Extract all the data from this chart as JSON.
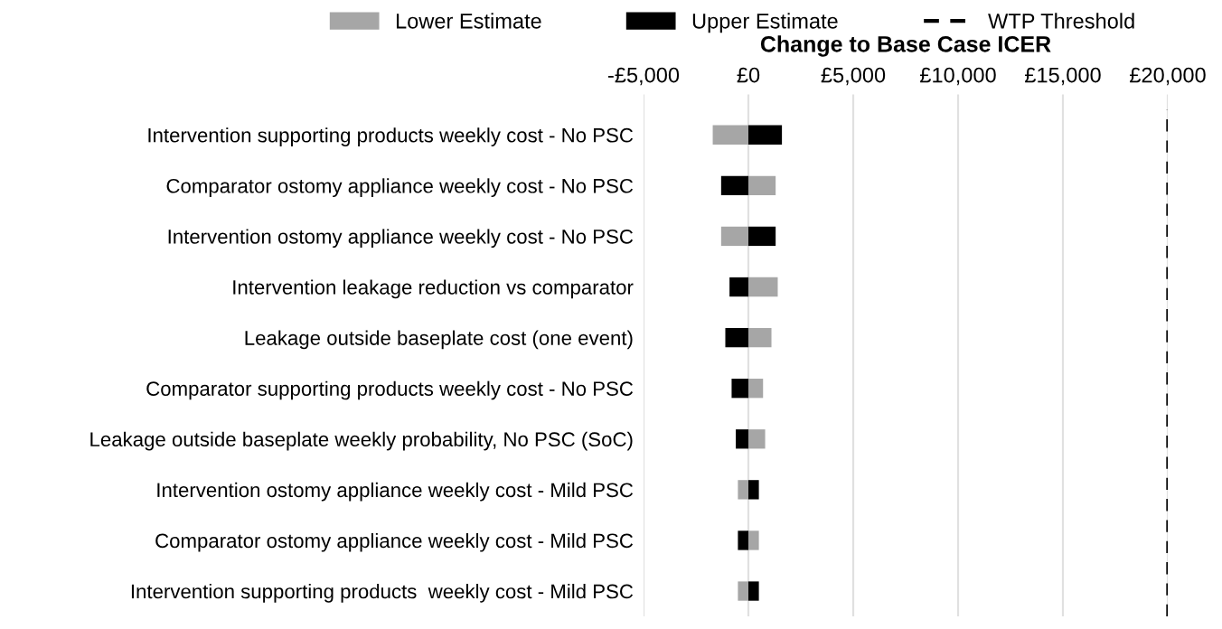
{
  "chart_data": {
    "type": "bar",
    "orientation": "horizontal",
    "xlabel": "Change to Base Case ICER",
    "categories": [
      "Intervention supporting products weekly cost - No PSC",
      "Comparator ostomy appliance weekly cost - No PSC",
      "Intervention ostomy appliance weekly cost - No PSC",
      "Intervention leakage reduction vs comparator",
      "Leakage outside baseplate cost (one event)",
      "Comparator supporting products weekly cost - No PSC",
      "Leakage outside baseplate weekly probability, No PSC (SoC)",
      "Intervention ostomy appliance weekly cost - Mild PSC",
      "Comparator ostomy appliance weekly cost - Mild PSC",
      "Intervention supporting products  weekly cost - Mild PSC"
    ],
    "series": [
      {
        "name": "Lower Estimate",
        "color": "#a6a6a6",
        "values": [
          -1700,
          1300,
          -1300,
          1400,
          1100,
          700,
          800,
          -500,
          500,
          -500
        ]
      },
      {
        "name": "Upper Estimate",
        "color": "#000000",
        "values": [
          1600,
          -1300,
          1300,
          -900,
          -1100,
          -800,
          -600,
          500,
          -500,
          500
        ]
      }
    ],
    "xlim": [
      -5000,
      20000
    ],
    "xticks": [
      {
        "value": -5000,
        "label": "-£5,000"
      },
      {
        "value": 0,
        "label": "£0"
      },
      {
        "value": 5000,
        "label": "£5,000"
      },
      {
        "value": 10000,
        "label": "£10,000"
      },
      {
        "value": 15000,
        "label": "£15,000"
      },
      {
        "value": 20000,
        "label": "£20,000"
      }
    ],
    "ref_lines": [
      {
        "axis": "x",
        "value": 20000,
        "label": "WTP Threshold",
        "color": "#000000",
        "line_style": "dashed"
      }
    ],
    "stacked": true,
    "grid": "x",
    "legend": "top"
  }
}
